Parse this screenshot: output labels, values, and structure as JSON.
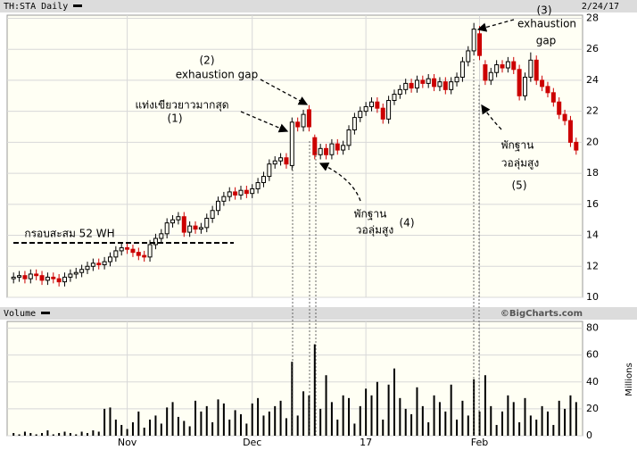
{
  "chart_data": {
    "type": "candlestick",
    "title": "TH:STA Daily",
    "date": "2/24/17",
    "volume_title": "Volume",
    "credit": "©BigCharts.com",
    "volume_axis_label": "Millions",
    "categories": [
      null,
      null,
      null,
      null,
      null,
      null,
      null,
      null,
      null,
      null,
      null,
      null,
      null,
      null,
      null,
      null,
      null,
      null,
      null,
      null,
      null,
      null,
      null,
      null,
      null,
      null,
      null,
      null,
      null,
      null,
      null,
      null,
      null,
      null,
      null,
      null,
      null,
      null,
      null,
      null,
      null,
      null,
      null,
      null,
      null,
      null,
      null,
      null,
      null,
      null,
      null,
      null,
      null,
      null,
      null,
      null,
      null,
      null,
      null,
      null,
      null,
      null,
      null,
      null,
      null,
      null,
      null,
      null,
      null,
      null,
      null,
      null,
      null,
      null,
      null,
      null,
      null,
      null,
      null,
      null,
      null,
      null,
      null,
      null,
      null,
      null,
      null,
      null,
      null,
      null,
      null,
      null,
      null,
      null,
      null,
      null,
      null,
      null,
      null,
      null
    ],
    "open": [
      11.2,
      11.3,
      11.4,
      11.2,
      11.5,
      11.4,
      11.1,
      11.3,
      11.2,
      11.0,
      11.3,
      11.5,
      11.6,
      11.8,
      12.0,
      12.2,
      12.1,
      12.3,
      12.6,
      13.0,
      13.2,
      13.1,
      12.9,
      12.7,
      12.6,
      13.4,
      13.8,
      14.1,
      14.8,
      15.0,
      15.2,
      14.2,
      14.6,
      14.4,
      14.5,
      15.1,
      15.6,
      16.2,
      16.5,
      16.8,
      16.6,
      16.9,
      16.7,
      17.0,
      17.4,
      17.8,
      18.6,
      18.8,
      19.0,
      18.5,
      21.3,
      21.0,
      22.1,
      20.3,
      19.2,
      19.6,
      19.2,
      19.9,
      19.5,
      19.8,
      20.8,
      21.6,
      22.0,
      22.3,
      22.6,
      22.2,
      21.5,
      22.7,
      23.1,
      23.4,
      23.8,
      23.5,
      24.0,
      23.8,
      24.1,
      23.6,
      23.9,
      23.4,
      23.9,
      24.2,
      25.2,
      25.9,
      27.0,
      25.0,
      24.0,
      24.5,
      25.0,
      24.8,
      25.2,
      24.7,
      23.0,
      24.2,
      25.3,
      24.0,
      23.6,
      23.2,
      22.6,
      21.8,
      21.4,
      20.0
    ],
    "high": [
      11.6,
      11.7,
      11.7,
      11.8,
      11.8,
      11.7,
      11.6,
      11.6,
      11.5,
      11.6,
      11.8,
      11.9,
      12.1,
      12.3,
      12.5,
      12.5,
      12.6,
      12.9,
      13.3,
      13.5,
      13.5,
      13.4,
      13.2,
      13.0,
      13.7,
      14.1,
      14.4,
      15.1,
      15.3,
      15.5,
      15.5,
      14.9,
      14.9,
      14.8,
      15.4,
      15.9,
      16.5,
      16.8,
      17.1,
      17.1,
      17.2,
      17.2,
      17.3,
      17.7,
      18.1,
      18.9,
      19.1,
      19.3,
      19.3,
      21.6,
      21.6,
      22.1,
      22.4,
      20.5,
      19.9,
      19.9,
      20.2,
      20.2,
      20.1,
      21.1,
      21.9,
      22.3,
      22.6,
      22.9,
      22.9,
      22.5,
      23.0,
      23.4,
      23.7,
      24.1,
      24.1,
      24.3,
      24.3,
      24.4,
      24.4,
      24.2,
      24.2,
      24.2,
      24.5,
      25.5,
      26.2,
      27.7,
      27.5,
      25.3,
      24.8,
      25.3,
      25.3,
      25.5,
      25.5,
      25.0,
      24.5,
      25.8,
      25.6,
      24.3,
      23.9,
      23.5,
      22.9,
      22.1,
      21.7,
      20.3
    ],
    "low": [
      10.9,
      11.0,
      10.9,
      10.9,
      11.1,
      10.8,
      10.8,
      10.9,
      10.7,
      10.7,
      11.0,
      11.2,
      11.3,
      11.5,
      11.7,
      11.8,
      11.8,
      12.0,
      12.3,
      12.7,
      12.8,
      12.6,
      12.4,
      12.3,
      12.3,
      13.1,
      13.5,
      13.8,
      14.5,
      14.7,
      13.9,
      13.9,
      14.1,
      14.1,
      14.2,
      14.8,
      15.3,
      15.9,
      16.2,
      16.3,
      16.3,
      16.4,
      16.4,
      16.7,
      17.1,
      17.5,
      18.3,
      18.5,
      18.3,
      18.2,
      20.7,
      20.7,
      20.7,
      18.9,
      18.9,
      18.9,
      18.9,
      19.2,
      19.2,
      19.5,
      20.5,
      21.3,
      21.7,
      22.0,
      21.9,
      21.2,
      21.2,
      22.4,
      22.8,
      23.1,
      23.2,
      23.2,
      23.5,
      23.5,
      23.3,
      23.3,
      23.1,
      23.1,
      23.6,
      23.9,
      24.9,
      25.6,
      25.3,
      23.7,
      23.7,
      24.2,
      24.5,
      24.5,
      24.4,
      22.7,
      22.7,
      23.9,
      23.7,
      23.3,
      22.9,
      22.3,
      21.5,
      21.1,
      19.7,
      19.2
    ],
    "close": [
      11.3,
      11.4,
      11.2,
      11.5,
      11.4,
      11.1,
      11.3,
      11.2,
      11.0,
      11.3,
      11.5,
      11.6,
      11.8,
      12.0,
      12.2,
      12.1,
      12.3,
      12.6,
      13.0,
      13.2,
      13.1,
      12.9,
      12.7,
      12.6,
      13.4,
      13.8,
      14.1,
      14.8,
      15.0,
      15.2,
      14.2,
      14.6,
      14.4,
      14.5,
      15.1,
      15.6,
      16.2,
      16.5,
      16.8,
      16.6,
      16.9,
      16.7,
      17.0,
      17.4,
      17.8,
      18.6,
      18.8,
      19.0,
      18.6,
      21.3,
      21.0,
      21.8,
      21.0,
      19.2,
      19.6,
      19.2,
      19.9,
      19.5,
      19.8,
      20.8,
      21.6,
      22.0,
      22.3,
      22.6,
      22.2,
      21.5,
      22.7,
      23.1,
      23.4,
      23.8,
      23.5,
      24.0,
      23.8,
      24.1,
      23.6,
      23.9,
      23.4,
      23.9,
      24.2,
      25.2,
      25.9,
      27.3,
      25.6,
      24.0,
      24.5,
      25.0,
      24.8,
      25.2,
      24.7,
      23.0,
      24.2,
      25.3,
      24.0,
      23.6,
      23.2,
      22.6,
      21.8,
      21.4,
      20.0,
      19.5
    ],
    "volume": [
      2,
      1,
      3,
      2,
      1,
      2,
      4,
      1,
      2,
      3,
      2,
      1,
      3,
      2,
      4,
      3,
      20,
      21,
      12,
      8,
      5,
      10,
      18,
      6,
      12,
      15,
      9,
      21,
      25,
      14,
      11,
      7,
      26,
      18,
      22,
      10,
      27,
      24,
      12,
      19,
      16,
      9,
      24,
      28,
      15,
      18,
      22,
      26,
      13,
      55,
      15,
      33,
      30,
      68,
      20,
      45,
      25,
      12,
      30,
      28,
      9,
      22,
      35,
      30,
      40,
      12,
      38,
      50,
      28,
      20,
      16,
      36,
      22,
      10,
      30,
      25,
      18,
      38,
      12,
      26,
      15,
      42,
      18,
      45,
      22,
      8,
      18,
      30,
      25,
      10,
      28,
      15,
      12,
      22,
      18,
      8,
      26,
      20,
      30,
      25
    ],
    "up_color": "#000000",
    "down_color": "#cc0000",
    "volume_color": "#000000",
    "ylim": [
      10,
      28.2
    ],
    "yticks": [
      10,
      12,
      14,
      16,
      18,
      20,
      22,
      24,
      26,
      28
    ],
    "y2lim": [
      0,
      85
    ],
    "y2ticks": [
      0,
      20,
      40,
      60,
      80
    ],
    "xticks": [
      {
        "value": 20,
        "label": "Nov"
      },
      {
        "value": 42,
        "label": "Dec"
      },
      {
        "value": 62,
        "label": "17"
      },
      {
        "value": 82,
        "label": "Feb"
      }
    ],
    "grid": true,
    "annotations": [
      {
        "lines": [
          "แท่งเขียวยาวมากสุด",
          "(1)"
        ]
      },
      {
        "lines": [
          "(2)",
          "exhaustion gap"
        ]
      },
      {
        "lines": [
          "(3)",
          "exhaustion",
          "gap"
        ]
      },
      {
        "lines": [
          "พักฐาน",
          "วอลุ่มสูง",
          "(4)"
        ]
      },
      {
        "lines": [
          "พักฐาน",
          "วอลุ่มสูง",
          "(5)"
        ]
      },
      {
        "lines": [
          "กรอบสะสม 52 WH"
        ]
      }
    ]
  }
}
